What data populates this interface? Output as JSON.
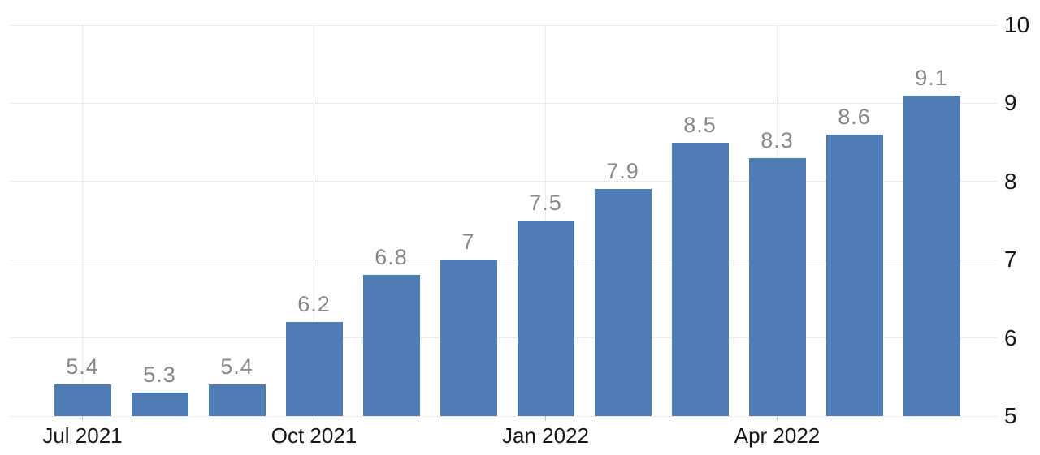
{
  "chart_data": {
    "type": "bar",
    "title": "",
    "values": [
      5.4,
      5.3,
      5.4,
      6.2,
      6.8,
      7,
      7.5,
      7.9,
      8.5,
      8.3,
      8.6,
      9.1
    ],
    "bar_value_labels": [
      "5.4",
      "5.3",
      "5.4",
      "6.2",
      "6.8",
      "7",
      "7.5",
      "7.9",
      "8.5",
      "8.3",
      "8.6",
      "9.1"
    ],
    "x_tick_labels": [
      {
        "bar_index": 0,
        "label": "Jul 2021"
      },
      {
        "bar_index": 3,
        "label": "Oct 2021"
      },
      {
        "bar_index": 6,
        "label": "Jan 2022"
      },
      {
        "bar_index": 9,
        "label": "Apr 2022"
      }
    ],
    "y_tick_labels": [
      "10",
      "9",
      "8",
      "7",
      "6",
      "5"
    ],
    "y_ticks": [
      10,
      9,
      8,
      7,
      6,
      5
    ],
    "ylim": [
      5,
      10
    ],
    "y_axis_side": "right",
    "grid": true,
    "legend": "none",
    "colors": {
      "bar": "#4f7cb3",
      "value_label": "#888888",
      "axis_label": "#161616",
      "h_gridline": "#dadada",
      "v_gridline": "#ebebeb",
      "tick": "#c4c4c4",
      "background": "#ffffff"
    }
  }
}
